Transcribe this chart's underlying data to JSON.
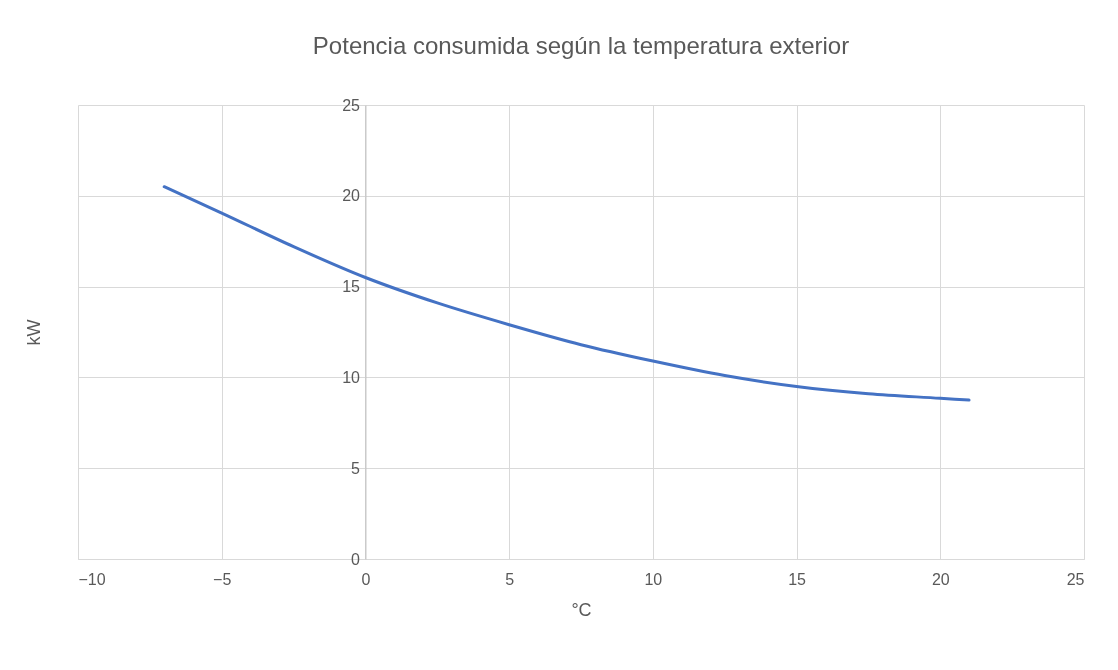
{
  "chart_data": {
    "type": "line",
    "title": "Potencia consumida según la temperatura exterior",
    "xlabel": "°C",
    "ylabel": "kW",
    "x": [
      -7,
      -5,
      -2.5,
      0,
      2.5,
      5,
      7.5,
      10,
      12.5,
      15,
      17.5,
      20,
      21
    ],
    "series": [
      {
        "color": "#4472c4",
        "values": [
          20.5,
          19.05,
          17.2,
          15.5,
          14.1,
          12.9,
          11.8,
          10.9,
          10.1,
          9.5,
          9.1,
          8.85,
          8.75
        ]
      }
    ],
    "xlim": [
      -10,
      25
    ],
    "xticks": [
      -10,
      -5,
      0,
      5,
      10,
      15,
      20,
      25
    ],
    "ylim": [
      0,
      25
    ],
    "yticks": [
      0,
      5,
      10,
      15,
      20,
      25
    ],
    "grid": true,
    "legend": false,
    "marker": "none",
    "line_style": "solid"
  }
}
